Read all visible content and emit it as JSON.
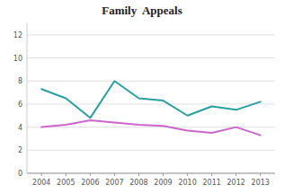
{
  "chart_data": {
    "type": "line",
    "title": "Family  Appeals",
    "x": [
      2004,
      2005,
      2006,
      2007,
      2008,
      2009,
      2010,
      2011,
      2012,
      2013
    ],
    "series": [
      {
        "color": "#29A0A0",
        "values": [
          7.3,
          6.5,
          4.8,
          8.0,
          6.5,
          6.3,
          5.0,
          5.8,
          5.5,
          6.2
        ]
      },
      {
        "color": "#CC66CC",
        "values": [
          4.0,
          4.2,
          4.6,
          4.4,
          4.2,
          4.1,
          3.7,
          3.5,
          4.0,
          3.3
        ]
      }
    ],
    "xlim": [
      2003.4,
      2013.6
    ],
    "xticks": [
      2004,
      2005,
      2006,
      2007,
      2008,
      2009,
      2010,
      2011,
      2012,
      2013
    ],
    "ylim": [
      0,
      13
    ],
    "yticks": [
      0,
      2,
      4,
      6,
      8,
      10,
      12
    ],
    "grid": true
  }
}
